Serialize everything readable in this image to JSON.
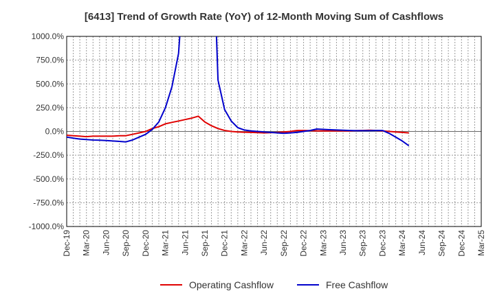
{
  "chart_data": {
    "type": "line",
    "title": "[6413]  Trend of Growth Rate (YoY) of 12-Month Moving Sum of Cashflows",
    "xlabel": "",
    "ylabel": "",
    "ylim": [
      -1000,
      1000
    ],
    "y_ticks": [
      1000,
      750,
      500,
      250,
      0,
      -250,
      -500,
      -750,
      -1000
    ],
    "y_tick_labels": [
      "1000.0%",
      "750.0%",
      "500.0%",
      "250.0%",
      "0.0%",
      "-250.0%",
      "-500.0%",
      "-750.0%",
      "-1000.0%"
    ],
    "x_tick_labels": [
      "Dec-19",
      "Mar-20",
      "Jun-20",
      "Sep-20",
      "Dec-20",
      "Mar-21",
      "Jun-21",
      "Sep-21",
      "Dec-21",
      "Mar-22",
      "Jun-22",
      "Sep-22",
      "Dec-22",
      "Mar-23",
      "Jun-23",
      "Sep-23",
      "Dec-23",
      "Mar-24",
      "Jun-24",
      "Sep-24",
      "Dec-24",
      "Mar-25"
    ],
    "grid": true,
    "legend_position": "bottom",
    "series": [
      {
        "name": "Operating Cashflow",
        "color": "#e00000",
        "values": [
          -40,
          -45,
          -50,
          -55,
          -50,
          -50,
          -50,
          -50,
          -45,
          -45,
          -30,
          -15,
          0,
          30,
          50,
          80,
          95,
          110,
          125,
          140,
          160,
          100,
          60,
          30,
          10,
          0,
          -5,
          -8,
          -10,
          -12,
          -15,
          -12,
          -10,
          -5,
          0,
          10,
          10,
          8,
          5,
          5,
          5,
          5,
          5,
          5,
          8,
          10,
          12,
          10,
          5,
          0,
          -5,
          -10,
          -15
        ]
      },
      {
        "name": "Free Cashflow",
        "color": "#0000cc",
        "values": [
          -60,
          -70,
          -80,
          -85,
          -90,
          -92,
          -95,
          -100,
          -105,
          -110,
          -90,
          -60,
          -30,
          20,
          100,
          250,
          470,
          820,
          1800,
          null,
          null,
          null,
          2500,
          540,
          230,
          110,
          40,
          15,
          5,
          0,
          -5,
          -10,
          -15,
          -20,
          -15,
          -10,
          0,
          10,
          25,
          22,
          18,
          15,
          12,
          10,
          8,
          8,
          8,
          10,
          10,
          -20,
          -60,
          -100,
          -150
        ]
      }
    ]
  }
}
